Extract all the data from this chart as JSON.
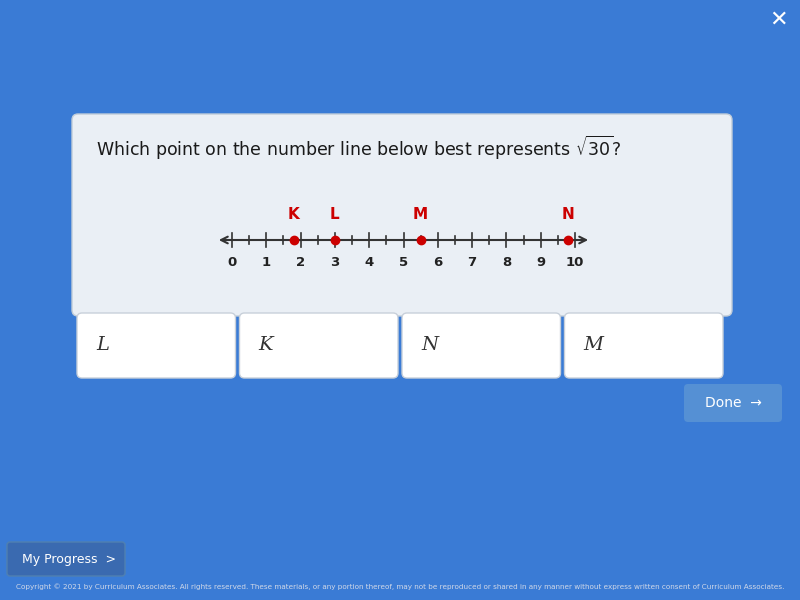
{
  "bg_color": "#3a7bd5",
  "card_color": "#eaeff5",
  "title_text": "Which point on the number line below best represents ",
  "sqrt_val": "30",
  "number_line_min": 0,
  "number_line_max": 10,
  "tick_major_values": [
    0,
    1,
    2,
    3,
    4,
    5,
    6,
    7,
    8,
    9,
    10
  ],
  "points": {
    "K": 1.8,
    "L": 3.0,
    "M": 5.5,
    "N": 9.8
  },
  "point_color": "#cc0000",
  "point_label_color": "#cc0000",
  "answer_options": [
    "L",
    "K",
    "N",
    "M"
  ],
  "answer_box_color": "#ffffff",
  "answer_text_color": "#333333",
  "done_button_color": "#5a94d4",
  "done_text_color": "#ffffff",
  "footer_text": "Copyright © 2021 by Curriculum Associates. All rights reserved. These materials, or any portion thereof, may not be reproduced or shared in any manner without express written consent of Curriculum Associates.",
  "close_button_color": "#ffffff",
  "my_progress_color": "#ffffff",
  "axis_line_color": "#333333"
}
